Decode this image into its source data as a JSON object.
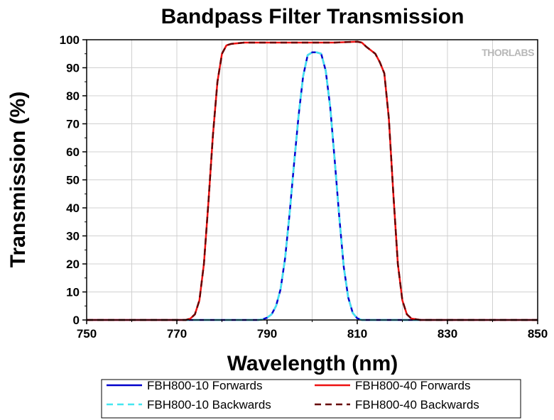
{
  "chart_data": {
    "type": "line",
    "title": "Bandpass Filter Transmission",
    "xlabel": "Wavelength (nm)",
    "ylabel": "Transmission (%)",
    "xlim": [
      750,
      850
    ],
    "ylim": [
      0,
      100
    ],
    "xticks": [
      750,
      770,
      790,
      810,
      830,
      850
    ],
    "yticks": [
      0,
      10,
      20,
      30,
      40,
      50,
      60,
      70,
      80,
      90,
      100
    ],
    "grid": true,
    "legend_position": "bottom",
    "watermark": "THORLABS",
    "colors": {
      "fbh800_10_forwards": "#0000cc",
      "fbh800_10_backwards": "#44e6f0",
      "fbh800_40_forwards": "#ee1111",
      "fbh800_40_backwards": "#660000"
    },
    "series": [
      {
        "name": "FBH800-10 Forwards",
        "style": "solid",
        "points": [
          [
            750,
            0
          ],
          [
            788,
            0
          ],
          [
            789,
            0.2
          ],
          [
            790,
            0.8
          ],
          [
            791,
            2
          ],
          [
            792,
            5
          ],
          [
            793,
            11
          ],
          [
            794,
            22
          ],
          [
            795,
            38
          ],
          [
            796,
            56
          ],
          [
            797,
            73
          ],
          [
            798,
            87
          ],
          [
            799,
            94.5
          ],
          [
            800,
            95.5
          ],
          [
            801,
            95.5
          ],
          [
            802,
            95
          ],
          [
            803,
            89
          ],
          [
            804,
            76
          ],
          [
            805,
            57
          ],
          [
            806,
            37
          ],
          [
            807,
            19
          ],
          [
            808,
            8
          ],
          [
            809,
            2.5
          ],
          [
            810,
            0.6
          ],
          [
            811,
            0
          ],
          [
            850,
            0
          ]
        ]
      },
      {
        "name": "FBH800-10 Backwards",
        "style": "dashed",
        "points": [
          [
            750,
            0
          ],
          [
            788,
            0
          ],
          [
            789,
            0.2
          ],
          [
            790,
            0.8
          ],
          [
            791,
            2
          ],
          [
            792,
            5
          ],
          [
            793,
            11
          ],
          [
            794,
            22
          ],
          [
            795,
            38
          ],
          [
            796,
            56
          ],
          [
            797,
            73
          ],
          [
            798,
            87
          ],
          [
            799,
            94.5
          ],
          [
            800,
            95.5
          ],
          [
            801,
            95.5
          ],
          [
            802,
            95
          ],
          [
            803,
            89
          ],
          [
            804,
            76
          ],
          [
            805,
            57
          ],
          [
            806,
            37
          ],
          [
            807,
            19
          ],
          [
            808,
            8
          ],
          [
            809,
            2.5
          ],
          [
            810,
            0.6
          ],
          [
            811,
            0
          ],
          [
            850,
            0
          ]
        ]
      },
      {
        "name": "FBH800-40 Forwards",
        "style": "solid",
        "points": [
          [
            750,
            0
          ],
          [
            772,
            0
          ],
          [
            773,
            0.5
          ],
          [
            774,
            2
          ],
          [
            775,
            7
          ],
          [
            776,
            20
          ],
          [
            777,
            42
          ],
          [
            778,
            66
          ],
          [
            779,
            85
          ],
          [
            780,
            95
          ],
          [
            781,
            98
          ],
          [
            782,
            98.5
          ],
          [
            785,
            99
          ],
          [
            790,
            99
          ],
          [
            800,
            99
          ],
          [
            805,
            99
          ],
          [
            810,
            99.3
          ],
          [
            811,
            99
          ],
          [
            812,
            97.5
          ],
          [
            814,
            95
          ],
          [
            815,
            92
          ],
          [
            816,
            88
          ],
          [
            817,
            72
          ],
          [
            818,
            45
          ],
          [
            819,
            20
          ],
          [
            820,
            7
          ],
          [
            821,
            2
          ],
          [
            822,
            0.5
          ],
          [
            824,
            0
          ],
          [
            850,
            0
          ]
        ]
      },
      {
        "name": "FBH800-40 Backwards",
        "style": "dashed",
        "points": [
          [
            750,
            0
          ],
          [
            772,
            0
          ],
          [
            773,
            0.5
          ],
          [
            774,
            2
          ],
          [
            775,
            7
          ],
          [
            776,
            20
          ],
          [
            777,
            42
          ],
          [
            778,
            66
          ],
          [
            779,
            85
          ],
          [
            780,
            95
          ],
          [
            781,
            98
          ],
          [
            782,
            98.5
          ],
          [
            785,
            99
          ],
          [
            790,
            99
          ],
          [
            800,
            99
          ],
          [
            805,
            99
          ],
          [
            810,
            99.3
          ],
          [
            811,
            99
          ],
          [
            812,
            97.5
          ],
          [
            814,
            95
          ],
          [
            815,
            92
          ],
          [
            816,
            88
          ],
          [
            817,
            72
          ],
          [
            818,
            45
          ],
          [
            819,
            20
          ],
          [
            820,
            7
          ],
          [
            821,
            2
          ],
          [
            822,
            0.5
          ],
          [
            824,
            0
          ],
          [
            850,
            0
          ]
        ]
      }
    ]
  }
}
